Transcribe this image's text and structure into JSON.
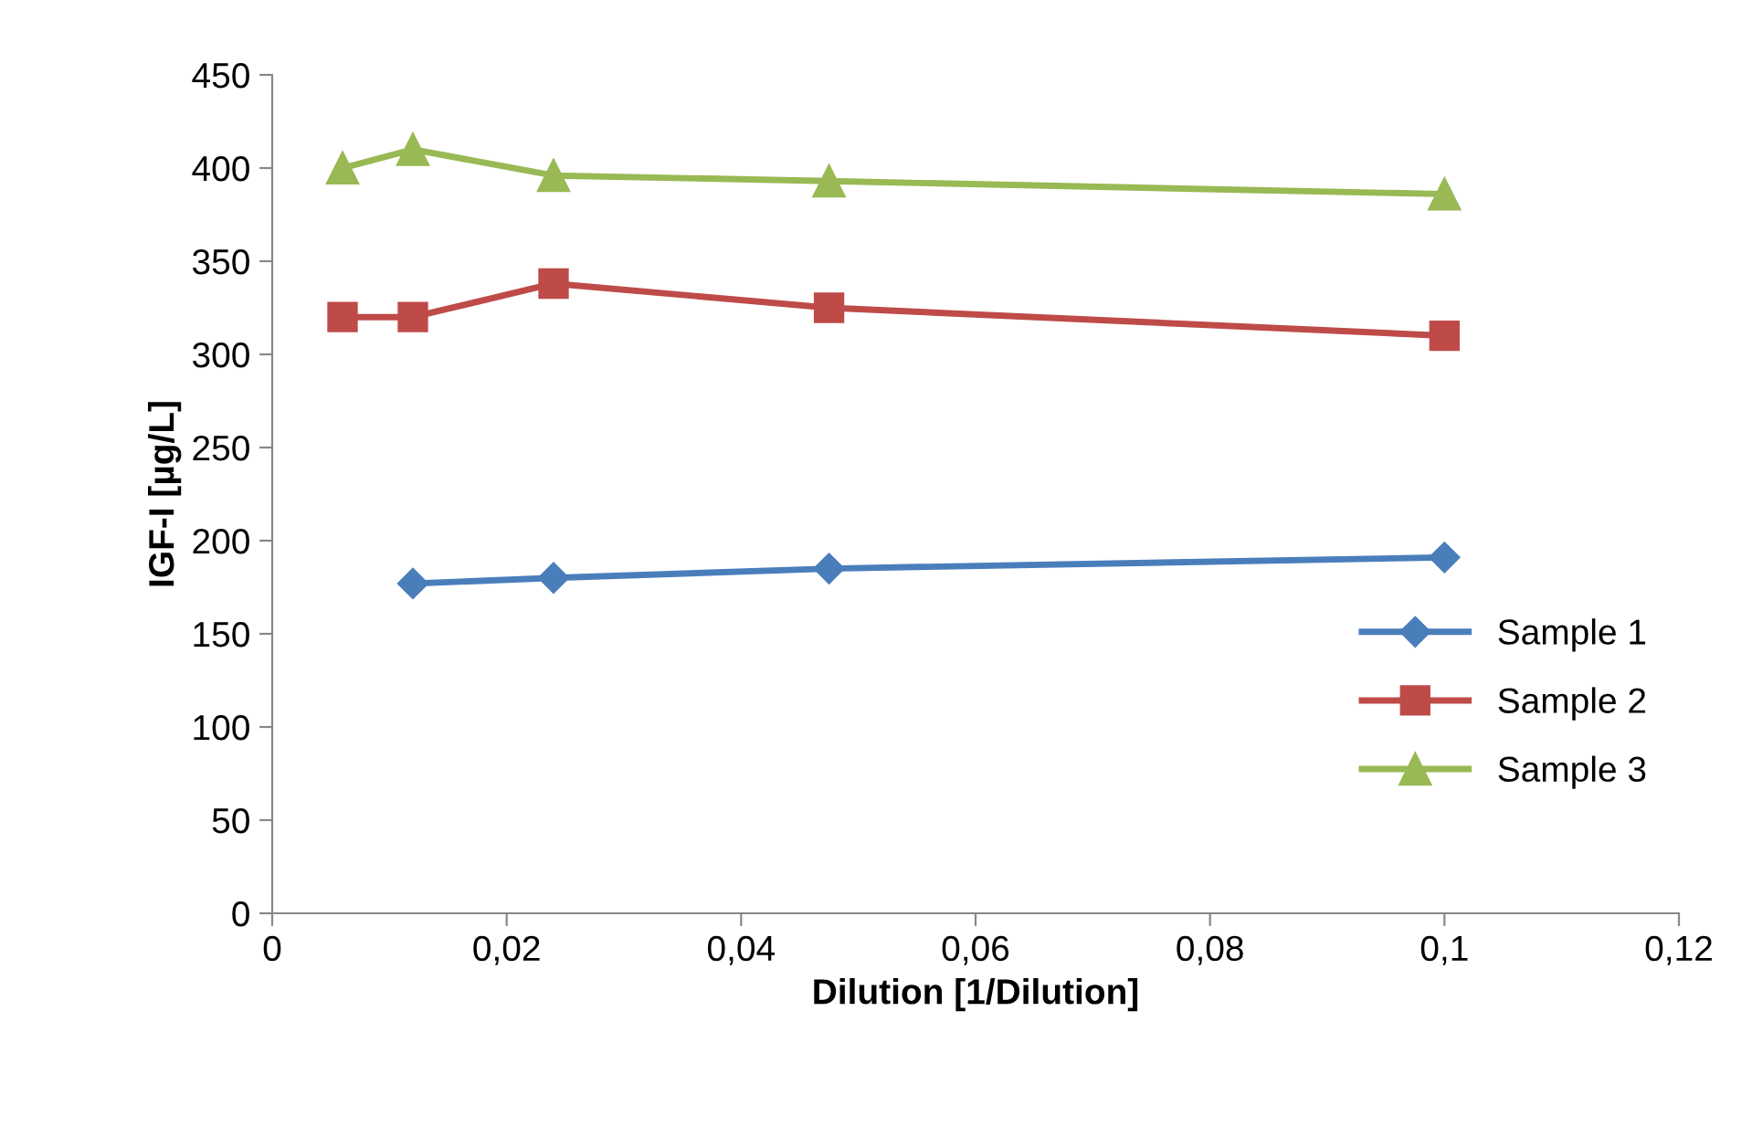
{
  "chart_data": {
    "type": "line",
    "xlabel": "Dilution [1/Dilution]",
    "ylabel": "IGF-I [µg/L]",
    "xlim": [
      0,
      0.12
    ],
    "xticks": [
      0,
      {
        "value": 0.02,
        "label": "0,02"
      },
      {
        "value": 0.04,
        "label": "0,04"
      },
      {
        "value": 0.06,
        "label": "0,06"
      },
      {
        "value": 0.08,
        "label": "0,08"
      },
      {
        "value": 0.1,
        "label": "0,1"
      },
      {
        "value": 0.12,
        "label": "0,12"
      }
    ],
    "ylim": [
      0,
      450
    ],
    "yticks": [
      0,
      50,
      100,
      150,
      200,
      250,
      300,
      350,
      400,
      450
    ],
    "grid": false,
    "legend": "right",
    "line_style": "solid",
    "series": [
      {
        "name": "Sample 1",
        "color": "#4a7ebb",
        "marker": "diamond",
        "x": [
          0.012,
          0.024,
          0.0475,
          0.1
        ],
        "values": [
          177,
          180,
          185,
          191
        ]
      },
      {
        "name": "Sample 2",
        "color": "#be4b48",
        "marker": "square",
        "x": [
          0.006,
          0.012,
          0.024,
          0.0475,
          0.1
        ],
        "values": [
          320,
          320,
          338,
          325,
          310
        ]
      },
      {
        "name": "Sample 3",
        "color": "#98b954",
        "marker": "triangle",
        "x": [
          0.006,
          0.012,
          0.024,
          0.0475,
          0.1
        ],
        "values": [
          400,
          410,
          396,
          393,
          386
        ]
      }
    ]
  }
}
